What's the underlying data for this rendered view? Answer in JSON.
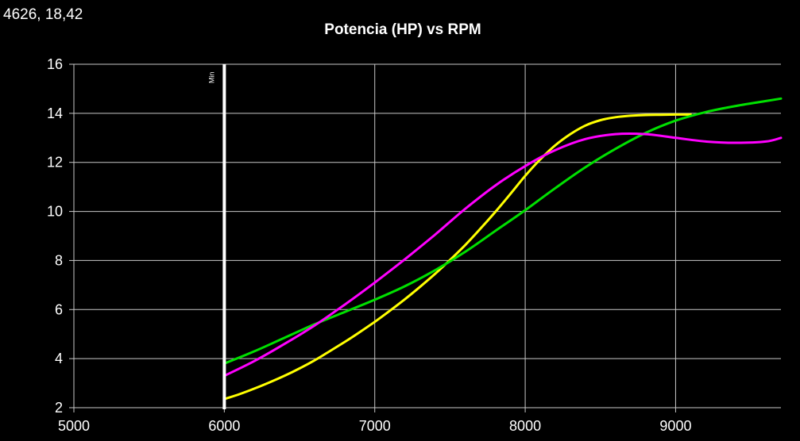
{
  "cursor_readout": "4626, 18,42",
  "colors": {
    "background": "#000000",
    "grid": "#c8c8c8",
    "text": "#ffffff",
    "marker": "#ffffff"
  },
  "chart_data": {
    "type": "line",
    "title": "Potencia (HP) vs RPM",
    "xlabel": "",
    "ylabel": "",
    "xlim": [
      5000,
      9700
    ],
    "ylim": [
      2,
      16
    ],
    "xticks": [
      5000,
      6000,
      7000,
      8000,
      9000
    ],
    "yticks": [
      2,
      4,
      6,
      8,
      10,
      12,
      14,
      16
    ],
    "grid": true,
    "legend": "none",
    "markers": [
      {
        "label": "Min",
        "x": 6000
      }
    ],
    "series": [
      {
        "color": "#ffff00",
        "x": [
          6000,
          6100,
          6200,
          6300,
          6400,
          6500,
          6600,
          6700,
          6800,
          6900,
          7000,
          7100,
          7200,
          7300,
          7400,
          7500,
          7600,
          7700,
          7800,
          7900,
          8000,
          8100,
          8200,
          8300,
          8400,
          8500,
          8600,
          8700,
          8800,
          8900,
          9000,
          9100
        ],
        "values": [
          2.35,
          2.55,
          2.78,
          3.03,
          3.3,
          3.6,
          3.93,
          4.3,
          4.68,
          5.08,
          5.5,
          5.95,
          6.42,
          6.92,
          7.45,
          8.02,
          8.62,
          9.28,
          9.97,
          10.7,
          11.45,
          12.12,
          12.7,
          13.15,
          13.5,
          13.72,
          13.84,
          13.9,
          13.93,
          13.94,
          13.95,
          13.95
        ]
      },
      {
        "color": "#00e000",
        "x": [
          6000,
          6200,
          6400,
          6600,
          6800,
          7000,
          7200,
          7400,
          7600,
          7800,
          8000,
          8200,
          8400,
          8600,
          8800,
          9000,
          9200,
          9400,
          9600,
          9700
        ],
        "values": [
          3.8,
          4.3,
          4.85,
          5.4,
          5.9,
          6.4,
          6.95,
          7.6,
          8.35,
          9.2,
          10.05,
          10.95,
          11.8,
          12.55,
          13.2,
          13.7,
          14.05,
          14.3,
          14.5,
          14.6
        ]
      },
      {
        "color": "#ff00ff",
        "x": [
          6000,
          6200,
          6400,
          6600,
          6800,
          7000,
          7200,
          7400,
          7600,
          7800,
          8000,
          8200,
          8400,
          8600,
          8800,
          9000,
          9200,
          9400,
          9600,
          9700
        ],
        "values": [
          3.3,
          3.9,
          4.6,
          5.35,
          6.2,
          7.1,
          8.05,
          9.05,
          10.1,
          11.05,
          11.85,
          12.5,
          12.95,
          13.15,
          13.15,
          13.0,
          12.85,
          12.8,
          12.85,
          13.0
        ]
      }
    ]
  }
}
